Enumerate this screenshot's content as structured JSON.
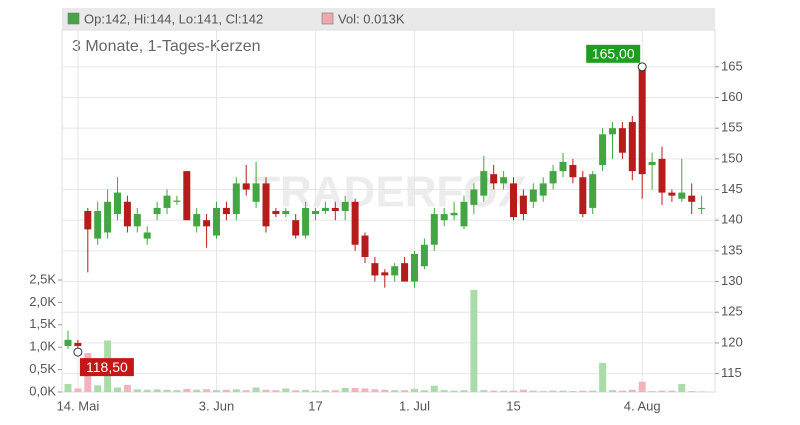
{
  "chart_data": {
    "type": "candlestick",
    "legend": [
      {
        "text": "Op:142, Hi:144, Lo:141, Cl:142",
        "color": "#44a544"
      },
      {
        "text": "Vol: 0.013K",
        "color": "#f0a8b0"
      }
    ],
    "subtitle": "3 Monate, 1-Tages-Kerzen",
    "watermark": "TRADERFOX",
    "categories": [
      null,
      "14. Mai",
      null,
      null,
      null,
      null,
      null,
      null,
      null,
      null,
      null,
      null,
      null,
      null,
      null,
      "3. Jun",
      null,
      null,
      null,
      null,
      null,
      null,
      null,
      null,
      null,
      "17",
      null,
      null,
      null,
      null,
      null,
      null,
      null,
      null,
      null,
      "1. Jul",
      null,
      null,
      null,
      null,
      null,
      null,
      null,
      null,
      null,
      "15",
      null,
      null,
      null,
      null,
      null,
      null,
      null,
      null,
      null,
      null,
      null,
      null,
      "4. Aug",
      null,
      null,
      null,
      null,
      null,
      null
    ],
    "open": [
      119.5,
      120,
      141.5,
      137,
      138,
      141,
      143,
      139,
      137,
      141,
      142,
      143,
      148,
      139,
      140,
      137.5,
      142,
      141,
      146,
      143,
      146,
      141.5,
      141,
      140,
      137.5,
      141,
      141.5,
      142,
      141.5,
      143,
      137.5,
      133,
      131.5,
      131,
      133,
      130,
      132.5,
      136,
      140,
      140.8,
      139,
      142.5,
      144,
      147.5,
      146,
      146,
      144,
      143,
      144,
      146,
      148,
      149,
      147,
      142,
      149,
      154,
      155,
      156,
      165,
      149,
      150,
      144.5,
      143.5,
      144,
      142
    ],
    "high": [
      122,
      120.5,
      142,
      143,
      145,
      147,
      144,
      142,
      139,
      143,
      145,
      144,
      148,
      142,
      141,
      143,
      143,
      147,
      149,
      149.5,
      147,
      142,
      142,
      141,
      143,
      142,
      143,
      143,
      144,
      143.5,
      138,
      134,
      132,
      133,
      134,
      135,
      137,
      142,
      142,
      143,
      144,
      146,
      150.5,
      149,
      148,
      147,
      145,
      146,
      147,
      149,
      151,
      150,
      148,
      148,
      155,
      156,
      156,
      157,
      165,
      151,
      152,
      145,
      150,
      146,
      144
    ],
    "low": [
      119,
      118.5,
      131.5,
      136,
      137,
      140,
      138,
      138,
      136,
      140,
      141,
      142.5,
      140,
      138,
      135.5,
      137,
      140,
      140,
      144,
      142,
      138,
      140.5,
      140.5,
      137,
      137,
      140,
      141,
      140,
      140,
      135,
      133,
      130,
      129,
      130,
      130,
      129,
      132,
      135,
      139,
      140,
      138.5,
      141,
      143,
      145,
      145,
      140,
      140,
      142,
      143,
      145,
      147,
      146,
      140.5,
      141,
      148,
      150,
      150,
      146.5,
      143.5,
      145,
      142.5,
      143,
      143,
      141,
      141
    ],
    "close": [
      120.5,
      119.5,
      138.5,
      141.5,
      143,
      144.5,
      139,
      141,
      138,
      142,
      144,
      143.2,
      140,
      141,
      139,
      142,
      141,
      146,
      145,
      146,
      139,
      141,
      141.5,
      137.5,
      142,
      141.5,
      142,
      141.5,
      143,
      136,
      134,
      131,
      131,
      132.5,
      130,
      134.5,
      136,
      141,
      141,
      141.2,
      143,
      145,
      148,
      146,
      147,
      140.5,
      141,
      145,
      146,
      148,
      149.5,
      147,
      141,
      147.5,
      154,
      155,
      151,
      148,
      147.5,
      149.5,
      144.5,
      144,
      144.5,
      143,
      142
    ],
    "volume": [
      180,
      80,
      870,
      150,
      1150,
      100,
      160,
      60,
      50,
      60,
      50,
      40,
      70,
      50,
      60,
      40,
      50,
      60,
      40,
      100,
      50,
      40,
      80,
      40,
      50,
      30,
      40,
      40,
      90,
      90,
      80,
      60,
      50,
      40,
      40,
      70,
      40,
      140,
      40,
      30,
      40,
      2280,
      40,
      30,
      30,
      30,
      50,
      30,
      20,
      30,
      30,
      20,
      30,
      30,
      650,
      40,
      30,
      50,
      230,
      20,
      30,
      30,
      180,
      20,
      13
    ],
    "up_color": "#44a544",
    "down_color": "#b71c1c",
    "volume_up_color": "#a9dca9",
    "volume_down_color": "#f3b3bc",
    "ylim": [
      112,
      171
    ],
    "yticks": [
      115,
      120,
      125,
      130,
      135,
      140,
      145,
      150,
      155,
      160,
      165
    ],
    "y2lim": [
      0,
      8080
    ],
    "y2ticks": [
      {
        "value": 0,
        "label": "0,0K"
      },
      {
        "value": 500,
        "label": "0,5K"
      },
      {
        "value": 1000,
        "label": "1,0K"
      },
      {
        "value": 1500,
        "label": "1,5K"
      },
      {
        "value": 2000,
        "label": "2,0K"
      },
      {
        "value": 2500,
        "label": "2,5K"
      }
    ],
    "annotations": [
      {
        "text": "165,00",
        "value": 165,
        "color": "#1e9e1e"
      },
      {
        "text": "118,50",
        "value": 118.5,
        "color": "#c41818"
      }
    ],
    "grid": true
  }
}
